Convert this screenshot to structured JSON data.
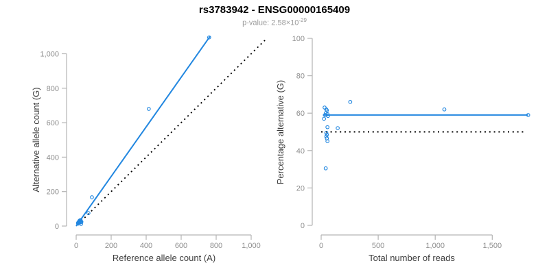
{
  "title": "rs3783942 - ENSG00000165409",
  "subtitle": {
    "prefix": "p-value: ",
    "base": "2.58×10",
    "exponent": "-29"
  },
  "colors": {
    "accent_blue": "#2287e0",
    "dotted_line": "#000000",
    "axis_line": "#b3b3b3",
    "tick_label": "#8e8e8e",
    "axis_title": "#3d3d3d",
    "title": "#000000",
    "subtitle": "#9a9a9a",
    "background": "#ffffff"
  },
  "chart_data": [
    {
      "type": "scatter",
      "name": "allele-counts-scatter",
      "xlabel": "Reference allele count (A)",
      "ylabel": "Alternative allele count (G)",
      "xlim": [
        0,
        1000
      ],
      "ylim": [
        0,
        1000
      ],
      "grid": false,
      "legend": "none",
      "xticks": {
        "values": [
          0,
          200,
          400,
          600,
          800,
          1000
        ],
        "labels": [
          "0",
          "200",
          "400",
          "600",
          "800",
          "1,000"
        ]
      },
      "yticks": {
        "values": [
          0,
          200,
          400,
          600,
          800,
          1000
        ],
        "labels": [
          "0",
          "200",
          "400",
          "600",
          "800",
          "1,000"
        ]
      },
      "points": [
        [
          11,
          19
        ],
        [
          17,
          28
        ],
        [
          19,
          31
        ],
        [
          16,
          24
        ],
        [
          22,
          33
        ],
        [
          14,
          21
        ],
        [
          25,
          35
        ],
        [
          11,
          14
        ],
        [
          26,
          29
        ],
        [
          23,
          22
        ],
        [
          26,
          24
        ],
        [
          24,
          21
        ],
        [
          27,
          23
        ],
        [
          30,
          25
        ],
        [
          28,
          12
        ],
        [
          70,
          75
        ],
        [
          90,
          167
        ],
        [
          415,
          680
        ],
        [
          760,
          1095
        ]
      ],
      "lines": [
        {
          "role": "regression-line",
          "x1": 0,
          "y1": 0,
          "x2": 765,
          "y2": 1101,
          "style": "solid",
          "color_key": "accent_blue"
        },
        {
          "role": "identity-line",
          "x1": 10,
          "y1": 10,
          "x2": 1090,
          "y2": 1090,
          "style": "dotted",
          "color_key": "dotted_line"
        }
      ]
    },
    {
      "type": "scatter",
      "name": "percentage-vs-reads-scatter",
      "xlabel": "Total number of reads",
      "ylabel": "Percentage alternative (G)",
      "xlim": [
        0,
        1850
      ],
      "ylim": [
        0,
        100
      ],
      "grid": false,
      "legend": "none",
      "xticks": {
        "values": [
          0,
          500,
          1000,
          1500
        ],
        "labels": [
          "0",
          "500",
          "1,000",
          "1,500"
        ]
      },
      "yticks": {
        "values": [
          0,
          20,
          40,
          60,
          80,
          100
        ],
        "labels": [
          "0",
          "20",
          "40",
          "60",
          "80",
          "100"
        ]
      },
      "points": [
        [
          30,
          63
        ],
        [
          45,
          62
        ],
        [
          50,
          61.5
        ],
        [
          40,
          60
        ],
        [
          55,
          59.5
        ],
        [
          35,
          59
        ],
        [
          60,
          58.5
        ],
        [
          25,
          57
        ],
        [
          55,
          52.5
        ],
        [
          45,
          49.5
        ],
        [
          50,
          48.5
        ],
        [
          45,
          47.5
        ],
        [
          50,
          46.5
        ],
        [
          55,
          45
        ],
        [
          40,
          30.5
        ],
        [
          145,
          52
        ],
        [
          255,
          66
        ],
        [
          1080,
          62
        ],
        [
          1815,
          59
        ]
      ],
      "lines": [
        {
          "role": "mean-percentage-line",
          "x1": 15,
          "y1": 59,
          "x2": 1815,
          "y2": 59,
          "style": "solid",
          "color_key": "accent_blue"
        },
        {
          "role": "fifty-percent-line",
          "x1": 0,
          "y1": 50,
          "x2": 1790,
          "y2": 50,
          "style": "dotted",
          "color_key": "dotted_line"
        }
      ]
    }
  ]
}
